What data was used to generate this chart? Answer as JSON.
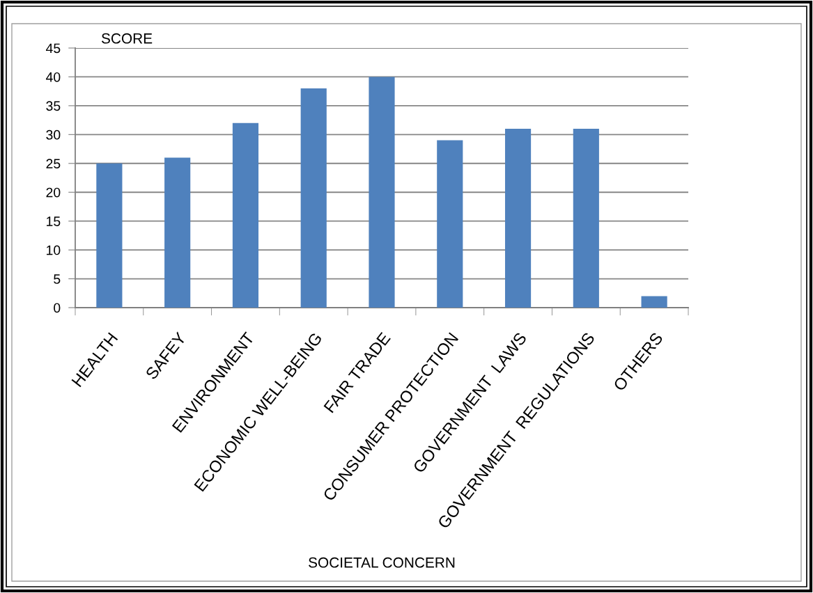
{
  "chart_data": {
    "type": "bar",
    "ylabel": "SCORE",
    "xlabel": "SOCIETAL CONCERN",
    "categories": [
      "HEALTH",
      "SAFEY",
      "ENVIRONMENT",
      "ECONOMIC WELL-BEING",
      "FAIR TRADE",
      "CONSUMER PROTECTION",
      "GOVERNMENT  LAWS",
      "GOVERNMENT  REGULATIONS",
      "OTHERS"
    ],
    "values": [
      25,
      26,
      32,
      38,
      40,
      29,
      31,
      31,
      2
    ],
    "color": "#4f81bd",
    "ylim": [
      0,
      45
    ],
    "yticks": [
      0,
      5,
      10,
      15,
      20,
      25,
      30,
      35,
      40,
      45
    ],
    "grid": "y"
  }
}
